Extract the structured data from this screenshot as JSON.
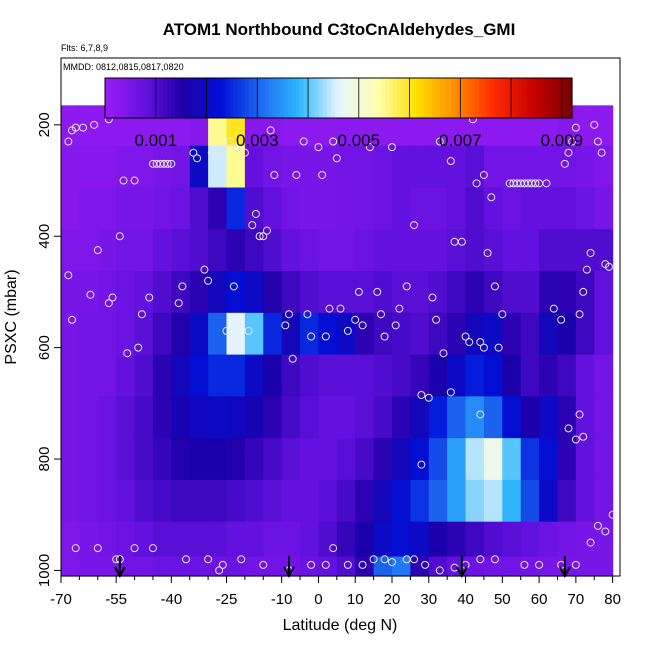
{
  "chart_data": {
    "type": "heatmap",
    "title": "ATOM1 Northbound C3toCnAldehydes_GMI",
    "annotations": [
      "Flts: 6,7,8,9",
      "MMDD: 0812,0815,0817,0820"
    ],
    "xlabel": "Latitude (deg N)",
    "ylabel": "PSXC (mbar)",
    "xlim": [
      -70,
      82
    ],
    "ylim": [
      1010,
      80
    ],
    "x_ticks": [
      -70,
      -55,
      -40,
      -25,
      -10,
      0,
      10,
      20,
      30,
      40,
      50,
      60,
      70,
      80
    ],
    "x_minor_ticks": [
      -65,
      -60,
      -50,
      -45,
      -35,
      -30,
      -20,
      -15,
      -5,
      5,
      15,
      25,
      35,
      45,
      55,
      65,
      75
    ],
    "y_ticks": [
      200,
      400,
      600,
      800,
      1000
    ],
    "colorbar": {
      "min": 0.0,
      "max": 0.0092,
      "tick_values": [
        0.001,
        0.003,
        0.005,
        0.007,
        0.009
      ],
      "tick_labels": [
        "0.001",
        "0.003",
        "0.005",
        "0.007",
        "0.009"
      ],
      "divisions": [
        0.001,
        0.002,
        0.003,
        0.004,
        0.005,
        0.006,
        0.007,
        0.008,
        0.009
      ],
      "colors": [
        "#9A1BF5",
        "#6612E0",
        "#1E00A8",
        "#0010D8",
        "#1E6AF0",
        "#2FB8FF",
        "#E6F4FF",
        "#FFFFB0",
        "#FFE000",
        "#FF8C00",
        "#FF2A00",
        "#C80000",
        "#780000"
      ]
    },
    "lat_bins": [
      -67.5,
      -62.5,
      -57.5,
      -52.5,
      -47.5,
      -42.5,
      -37.5,
      -32.5,
      -27.5,
      -22.5,
      -17.5,
      -12.5,
      -7.5,
      -2.5,
      2.5,
      7.5,
      12.5,
      17.5,
      22.5,
      27.5,
      32.5,
      37.5,
      42.5,
      47.5,
      52.5,
      57.5,
      62.5,
      67.5,
      72.5,
      77.5
    ],
    "pressure_levels": [
      200,
      275,
      350,
      425,
      500,
      575,
      650,
      725,
      800,
      875,
      950,
      1000
    ],
    "values_x1e4": [
      [
        2,
        2,
        2,
        2,
        2,
        2,
        2,
        3,
        55,
        60,
        3,
        3,
        2,
        2,
        2,
        2,
        2,
        2,
        2,
        2,
        2,
        2,
        2,
        2,
        2,
        2,
        2,
        3,
        2,
        2
      ],
      [
        3,
        3,
        3,
        4,
        4,
        5,
        6,
        20,
        45,
        55,
        8,
        6,
        5,
        5,
        5,
        6,
        6,
        7,
        8,
        8,
        8,
        8,
        9,
        6,
        6,
        6,
        6,
        6,
        5,
        4
      ],
      [
        3,
        4,
        4,
        5,
        5,
        6,
        7,
        10,
        14,
        25,
        10,
        8,
        6,
        5,
        5,
        6,
        6,
        7,
        8,
        7,
        7,
        8,
        10,
        8,
        7,
        8,
        8,
        8,
        7,
        5
      ],
      [
        4,
        4,
        5,
        6,
        6,
        8,
        9,
        10,
        12,
        14,
        12,
        10,
        8,
        7,
        6,
        6,
        7,
        8,
        8,
        8,
        8,
        9,
        10,
        9,
        8,
        8,
        10,
        10,
        10,
        10
      ],
      [
        5,
        5,
        6,
        7,
        8,
        10,
        12,
        14,
        18,
        22,
        20,
        15,
        12,
        10,
        9,
        9,
        9,
        10,
        9,
        9,
        10,
        12,
        14,
        12,
        10,
        10,
        14,
        14,
        12,
        8
      ],
      [
        5,
        6,
        6,
        7,
        9,
        12,
        15,
        20,
        30,
        46,
        40,
        25,
        18,
        25,
        22,
        20,
        14,
        12,
        11,
        10,
        12,
        14,
        18,
        20,
        14,
        12,
        18,
        16,
        12,
        8
      ],
      [
        5,
        6,
        6,
        8,
        10,
        14,
        18,
        22,
        25,
        25,
        20,
        16,
        12,
        10,
        9,
        9,
        9,
        10,
        11,
        13,
        16,
        20,
        24,
        22,
        16,
        12,
        14,
        12,
        8,
        6
      ],
      [
        5,
        6,
        7,
        9,
        11,
        14,
        17,
        19,
        20,
        19,
        17,
        14,
        11,
        9,
        8,
        8,
        9,
        11,
        14,
        18,
        24,
        30,
        34,
        30,
        22,
        16,
        20,
        14,
        8,
        6
      ],
      [
        5,
        6,
        7,
        9,
        11,
        13,
        15,
        16,
        16,
        15,
        13,
        11,
        9,
        8,
        8,
        9,
        11,
        14,
        18,
        22,
        28,
        36,
        44,
        48,
        40,
        26,
        22,
        14,
        8,
        6
      ],
      [
        5,
        6,
        7,
        8,
        10,
        11,
        12,
        12,
        12,
        11,
        10,
        9,
        8,
        8,
        9,
        11,
        14,
        18,
        22,
        26,
        30,
        36,
        42,
        44,
        38,
        28,
        20,
        12,
        8,
        6
      ],
      [
        4,
        5,
        6,
        7,
        8,
        9,
        9,
        9,
        9,
        8,
        8,
        7,
        7,
        8,
        10,
        13,
        16,
        20,
        22,
        20,
        16,
        14,
        12,
        10,
        9,
        8,
        7,
        6,
        5,
        5
      ],
      [
        4,
        5,
        5,
        6,
        6,
        7,
        7,
        7,
        7,
        7,
        6,
        6,
        6,
        7,
        8,
        10,
        14,
        30,
        32,
        14,
        10,
        8,
        7,
        6,
        6,
        6,
        5,
        5,
        5,
        5
      ]
    ],
    "observation_points": [
      [
        -68,
        230
      ],
      [
        -67,
        210
      ],
      [
        -66,
        205
      ],
      [
        -64,
        205
      ],
      [
        -61,
        200
      ],
      [
        -57,
        190
      ],
      [
        -68,
        470
      ],
      [
        -67,
        550
      ],
      [
        -62,
        505
      ],
      [
        -60,
        425
      ],
      [
        -57,
        520
      ],
      [
        -56,
        510
      ],
      [
        -54,
        400
      ],
      [
        -53,
        300
      ],
      [
        -52,
        610
      ],
      [
        -50,
        300
      ],
      [
        -49,
        600
      ],
      [
        -48,
        540
      ],
      [
        -46,
        510
      ],
      [
        -45,
        270
      ],
      [
        -44,
        270
      ],
      [
        -43,
        270
      ],
      [
        -42,
        270
      ],
      [
        -41,
        270
      ],
      [
        -40,
        270
      ],
      [
        -38,
        520
      ],
      [
        -37,
        490
      ],
      [
        -34,
        250
      ],
      [
        -33,
        260
      ],
      [
        -31,
        460
      ],
      [
        -30,
        480
      ],
      [
        -29,
        250
      ],
      [
        -27,
        250
      ],
      [
        -25,
        570
      ],
      [
        -24,
        230
      ],
      [
        -23,
        490
      ],
      [
        -22,
        240
      ],
      [
        -20,
        250
      ],
      [
        -19,
        570
      ],
      [
        -18,
        380
      ],
      [
        -17,
        360
      ],
      [
        -16,
        400
      ],
      [
        -15,
        400
      ],
      [
        -14,
        390
      ],
      [
        -13,
        210
      ],
      [
        -12,
        290
      ],
      [
        -9,
        560
      ],
      [
        -8,
        540
      ],
      [
        -7,
        620
      ],
      [
        -6,
        290
      ],
      [
        -4,
        230
      ],
      [
        -3,
        540
      ],
      [
        -2,
        580
      ],
      [
        0,
        240
      ],
      [
        1,
        290
      ],
      [
        2,
        580
      ],
      [
        3,
        530
      ],
      [
        4,
        230
      ],
      [
        5,
        260
      ],
      [
        6,
        530
      ],
      [
        8,
        570
      ],
      [
        10,
        550
      ],
      [
        11,
        500
      ],
      [
        12,
        560
      ],
      [
        14,
        240
      ],
      [
        16,
        500
      ],
      [
        17,
        540
      ],
      [
        18,
        580
      ],
      [
        20,
        240
      ],
      [
        21,
        560
      ],
      [
        22,
        530
      ],
      [
        24,
        490
      ],
      [
        26,
        380
      ],
      [
        28,
        685
      ],
      [
        31,
        510
      ],
      [
        32,
        550
      ],
      [
        33,
        230
      ],
      [
        34,
        610
      ],
      [
        36,
        265
      ],
      [
        37,
        410
      ],
      [
        39,
        410
      ],
      [
        40,
        580
      ],
      [
        41,
        590
      ],
      [
        42,
        190
      ],
      [
        43,
        305
      ],
      [
        44,
        590
      ],
      [
        45,
        290
      ],
      [
        46,
        430
      ],
      [
        47,
        330
      ],
      [
        48,
        490
      ],
      [
        49,
        600
      ],
      [
        50,
        540
      ],
      [
        52,
        305
      ],
      [
        53,
        305
      ],
      [
        54,
        305
      ],
      [
        55,
        305
      ],
      [
        56,
        305
      ],
      [
        57,
        305
      ],
      [
        58,
        305
      ],
      [
        59,
        305
      ],
      [
        60,
        305
      ],
      [
        62,
        305
      ],
      [
        64,
        530
      ],
      [
        66,
        550
      ],
      [
        67,
        270
      ],
      [
        68,
        250
      ],
      [
        69,
        230
      ],
      [
        70,
        205
      ],
      [
        71,
        540
      ],
      [
        72,
        500
      ],
      [
        73,
        460
      ],
      [
        74,
        430
      ],
      [
        75,
        200
      ],
      [
        76,
        230
      ],
      [
        77,
        250
      ],
      [
        78,
        450
      ],
      [
        79,
        455
      ],
      [
        -66,
        960
      ],
      [
        -60,
        960
      ],
      [
        -55,
        980
      ],
      [
        -54,
        980
      ],
      [
        -50,
        960
      ],
      [
        -45,
        960
      ],
      [
        -36,
        980
      ],
      [
        -30,
        980
      ],
      [
        -27,
        1000
      ],
      [
        -26,
        990
      ],
      [
        -21,
        980
      ],
      [
        -15,
        990
      ],
      [
        -8,
        1000
      ],
      [
        -2,
        990
      ],
      [
        2,
        990
      ],
      [
        4,
        960
      ],
      [
        8,
        990
      ],
      [
        12,
        990
      ],
      [
        15,
        980
      ],
      [
        18,
        980
      ],
      [
        20,
        985
      ],
      [
        24,
        980
      ],
      [
        26,
        980
      ],
      [
        29,
        990
      ],
      [
        33,
        1000
      ],
      [
        37,
        995
      ],
      [
        40,
        990
      ],
      [
        44,
        980
      ],
      [
        48,
        980
      ],
      [
        56,
        990
      ],
      [
        60,
        990
      ],
      [
        66,
        990
      ],
      [
        70,
        990
      ],
      [
        74,
        950
      ],
      [
        78,
        930
      ],
      [
        76,
        920
      ],
      [
        80,
        900
      ],
      [
        45,
        600
      ],
      [
        30,
        690
      ],
      [
        28,
        810
      ],
      [
        68,
        745
      ],
      [
        70,
        765
      ],
      [
        72,
        760
      ],
      [
        71,
        720
      ],
      [
        44,
        720
      ],
      [
        36,
        680
      ]
    ],
    "arrows_lat": [
      -54,
      -8,
      39,
      67
    ]
  }
}
